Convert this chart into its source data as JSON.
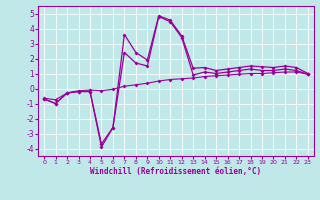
{
  "xlabel": "Windchill (Refroidissement éolien,°C)",
  "background_color": "#c0e8e8",
  "grid_color": "#ffffff",
  "line_color": "#990099",
  "xlim": [
    -0.5,
    23.5
  ],
  "ylim": [
    -4.5,
    5.5
  ],
  "xticks": [
    0,
    1,
    2,
    3,
    4,
    5,
    6,
    7,
    8,
    9,
    10,
    11,
    12,
    13,
    14,
    15,
    16,
    17,
    18,
    19,
    20,
    21,
    22,
    23
  ],
  "yticks": [
    -4,
    -3,
    -2,
    -1,
    0,
    1,
    2,
    3,
    4,
    5
  ],
  "curve1_x": [
    0,
    1,
    2,
    3,
    4,
    5,
    6,
    7,
    8,
    9,
    10,
    11,
    12,
    13,
    14,
    15,
    16,
    17,
    18,
    19,
    20,
    21,
    22,
    23
  ],
  "curve1_y": [
    -0.7,
    -1.0,
    -0.3,
    -0.2,
    -0.2,
    -3.7,
    -2.6,
    3.6,
    2.4,
    1.9,
    4.85,
    4.55,
    3.5,
    1.35,
    1.4,
    1.2,
    1.3,
    1.4,
    1.5,
    1.45,
    1.4,
    1.5,
    1.4,
    1.0
  ],
  "curve2_x": [
    0,
    1,
    2,
    3,
    4,
    5,
    6,
    7,
    8,
    9,
    10,
    11,
    12,
    13,
    14,
    15,
    16,
    17,
    18,
    19,
    20,
    21,
    22,
    23
  ],
  "curve2_y": [
    -0.7,
    -1.0,
    -0.3,
    -0.2,
    -0.2,
    -3.9,
    -2.6,
    2.4,
    1.7,
    1.5,
    4.8,
    4.45,
    3.4,
    0.9,
    1.1,
    1.0,
    1.1,
    1.2,
    1.3,
    1.2,
    1.2,
    1.3,
    1.2,
    0.95
  ],
  "curve3_x": [
    0,
    1,
    2,
    3,
    4,
    5,
    6,
    7,
    8,
    9,
    10,
    11,
    12,
    13,
    14,
    15,
    16,
    17,
    18,
    19,
    20,
    21,
    22,
    23
  ],
  "curve3_y": [
    -0.65,
    -0.75,
    -0.3,
    -0.15,
    -0.1,
    -0.15,
    -0.05,
    0.15,
    0.25,
    0.35,
    0.5,
    0.6,
    0.65,
    0.7,
    0.8,
    0.85,
    0.9,
    0.95,
    1.0,
    1.0,
    1.05,
    1.1,
    1.1,
    0.95
  ]
}
